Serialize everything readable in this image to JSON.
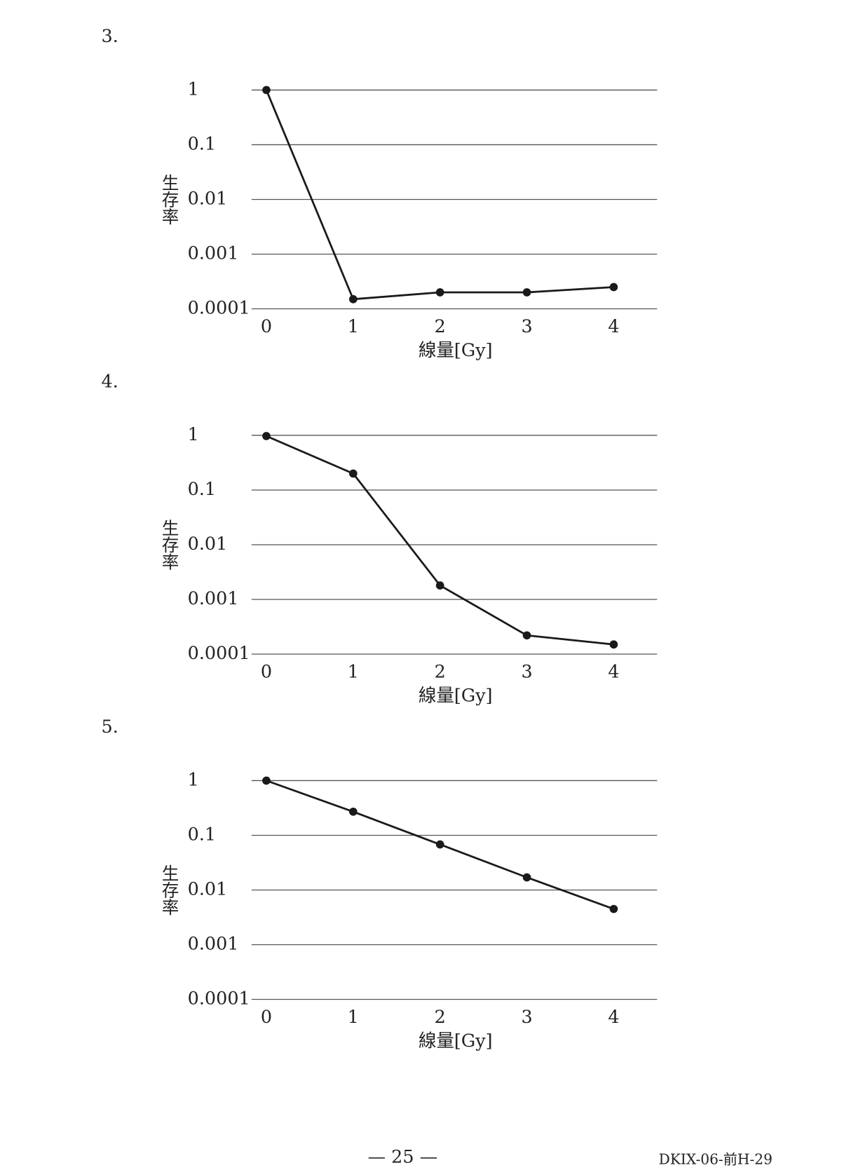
{
  "chart_data": [
    {
      "type": "line",
      "label": "3.",
      "ylabel": "生存率",
      "xlabel": "線量[Gy]",
      "x": [
        0,
        1,
        2,
        3,
        4
      ],
      "values": [
        1,
        0.00015,
        0.0002,
        0.0002,
        0.00025
      ],
      "xlim": [
        -0.17,
        4.5
      ],
      "xticks": [
        0,
        1,
        2,
        3,
        4
      ],
      "ylim": [
        0.0001,
        1
      ],
      "yticks": [
        1,
        0.1,
        0.01,
        0.001,
        0.0001
      ],
      "log_y": true,
      "grid": true,
      "color": "#1a1a1a"
    },
    {
      "type": "line",
      "label": "4.",
      "ylabel": "生存率",
      "xlabel": "線量[Gy]",
      "x": [
        0,
        1,
        2,
        3,
        4
      ],
      "values": [
        0.97,
        0.2,
        0.0018,
        0.00022,
        0.00015
      ],
      "xlim": [
        -0.17,
        4.5
      ],
      "xticks": [
        0,
        1,
        2,
        3,
        4
      ],
      "ylim": [
        0.0001,
        1
      ],
      "yticks": [
        1,
        0.1,
        0.01,
        0.001,
        0.0001
      ],
      "log_y": true,
      "grid": true,
      "color": "#1a1a1a"
    },
    {
      "type": "line",
      "label": "5.",
      "ylabel": "生存率",
      "xlabel": "線量[Gy]",
      "x": [
        0,
        1,
        2,
        3,
        4
      ],
      "values": [
        1,
        0.27,
        0.068,
        0.017,
        0.0045
      ],
      "xlim": [
        -0.17,
        4.5
      ],
      "xticks": [
        0,
        1,
        2,
        3,
        4
      ],
      "ylim": [
        0.0001,
        1
      ],
      "yticks": [
        1,
        0.1,
        0.01,
        0.001,
        0.0001
      ],
      "log_y": true,
      "grid": true,
      "color": "#1a1a1a"
    }
  ],
  "footer": {
    "page_number": "— 25 —",
    "code": "DKIX-06-前H-29"
  }
}
